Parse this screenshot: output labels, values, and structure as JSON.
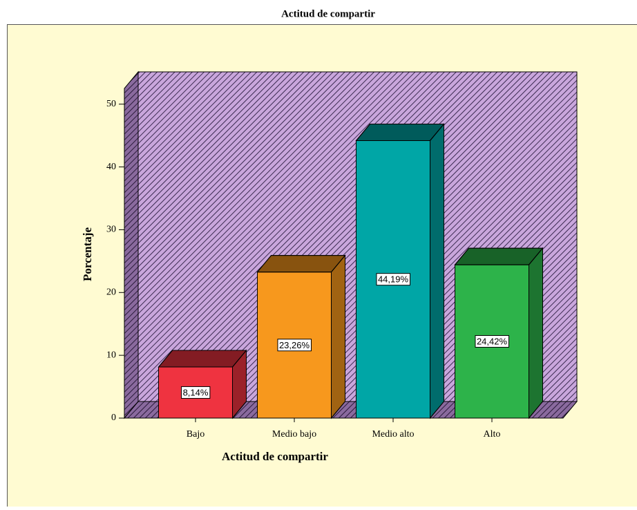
{
  "chart_data": {
    "type": "bar3d",
    "title": "Actitud de compartir",
    "x_label": "Actitud de compartir",
    "y_label": "Porcentaje",
    "categories": [
      "Bajo",
      "Medio bajo",
      "Medio alto",
      "Alto"
    ],
    "values": [
      8.14,
      23.26,
      44.19,
      24.42
    ],
    "value_labels": [
      "8,14%",
      "23,26%",
      "44,19%",
      "24,42%"
    ],
    "colors": [
      "#ef3340",
      "#f7981d",
      "#00a6a6",
      "#2db34a"
    ],
    "ylim": [
      0,
      52.5
    ],
    "yticks": [
      0,
      10,
      20,
      30,
      40,
      50
    ]
  }
}
